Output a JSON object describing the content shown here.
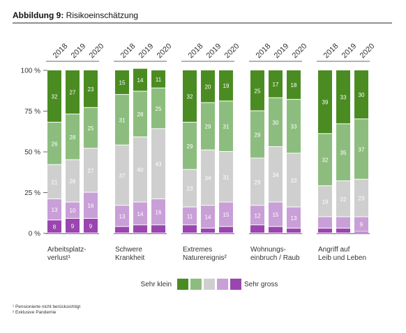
{
  "chart_data": {
    "type": "stacked-bar-groups",
    "title_prefix": "Abbildung 9:",
    "title": "Risikoeinschätzung",
    "years": [
      "2018",
      "2019",
      "2020"
    ],
    "groups": [
      {
        "label_lines": [
          "Arbeitsplatz-",
          "verlust¹"
        ]
      },
      {
        "label_lines": [
          "Schwere",
          "Krankheit"
        ]
      },
      {
        "label_lines": [
          "Extremes",
          "Naturereignis²"
        ]
      },
      {
        "label_lines": [
          "Wohnungs-",
          "einbruch / Raub"
        ]
      },
      {
        "label_lines": [
          "Angriff auf",
          "Leib und Leben"
        ]
      }
    ],
    "series": [
      {
        "color": "#9a45b0",
        "values": [
          8,
          9,
          9,
          4,
          5,
          5,
          5,
          3,
          4,
          5,
          4,
          3,
          3,
          3,
          1
        ]
      },
      {
        "color": "#c99fd8",
        "values": [
          13,
          10,
          16,
          13,
          14,
          16,
          11,
          14,
          15,
          12,
          15,
          13,
          7,
          7,
          9
        ]
      },
      {
        "color": "#cfcfcf",
        "values": [
          21,
          26,
          27,
          37,
          40,
          43,
          23,
          34,
          31,
          29,
          34,
          33,
          19,
          22,
          23
        ]
      },
      {
        "color": "#8dbd7e",
        "values": [
          26,
          28,
          25,
          31,
          28,
          25,
          29,
          29,
          31,
          29,
          30,
          33,
          32,
          35,
          37
        ]
      },
      {
        "color": "#4b8c22",
        "values": [
          32,
          27,
          23,
          15,
          14,
          11,
          32,
          20,
          19,
          25,
          17,
          18,
          39,
          33,
          30
        ]
      }
    ],
    "label_min": 8,
    "ylim": [
      0,
      100
    ],
    "yticks": [
      {
        "value": 0,
        "label": "0 %"
      },
      {
        "value": 25,
        "label": "25 %"
      },
      {
        "value": 50,
        "label": "50 %"
      },
      {
        "value": 75,
        "label": "75 %"
      },
      {
        "value": 100,
        "label": "100 %"
      }
    ],
    "legend": {
      "left": "Sehr klein",
      "right": "Sehr gross"
    },
    "footnotes": [
      "¹ Pensionierte nicht berücksichtigt",
      "² Exklusive Pandemie"
    ]
  }
}
